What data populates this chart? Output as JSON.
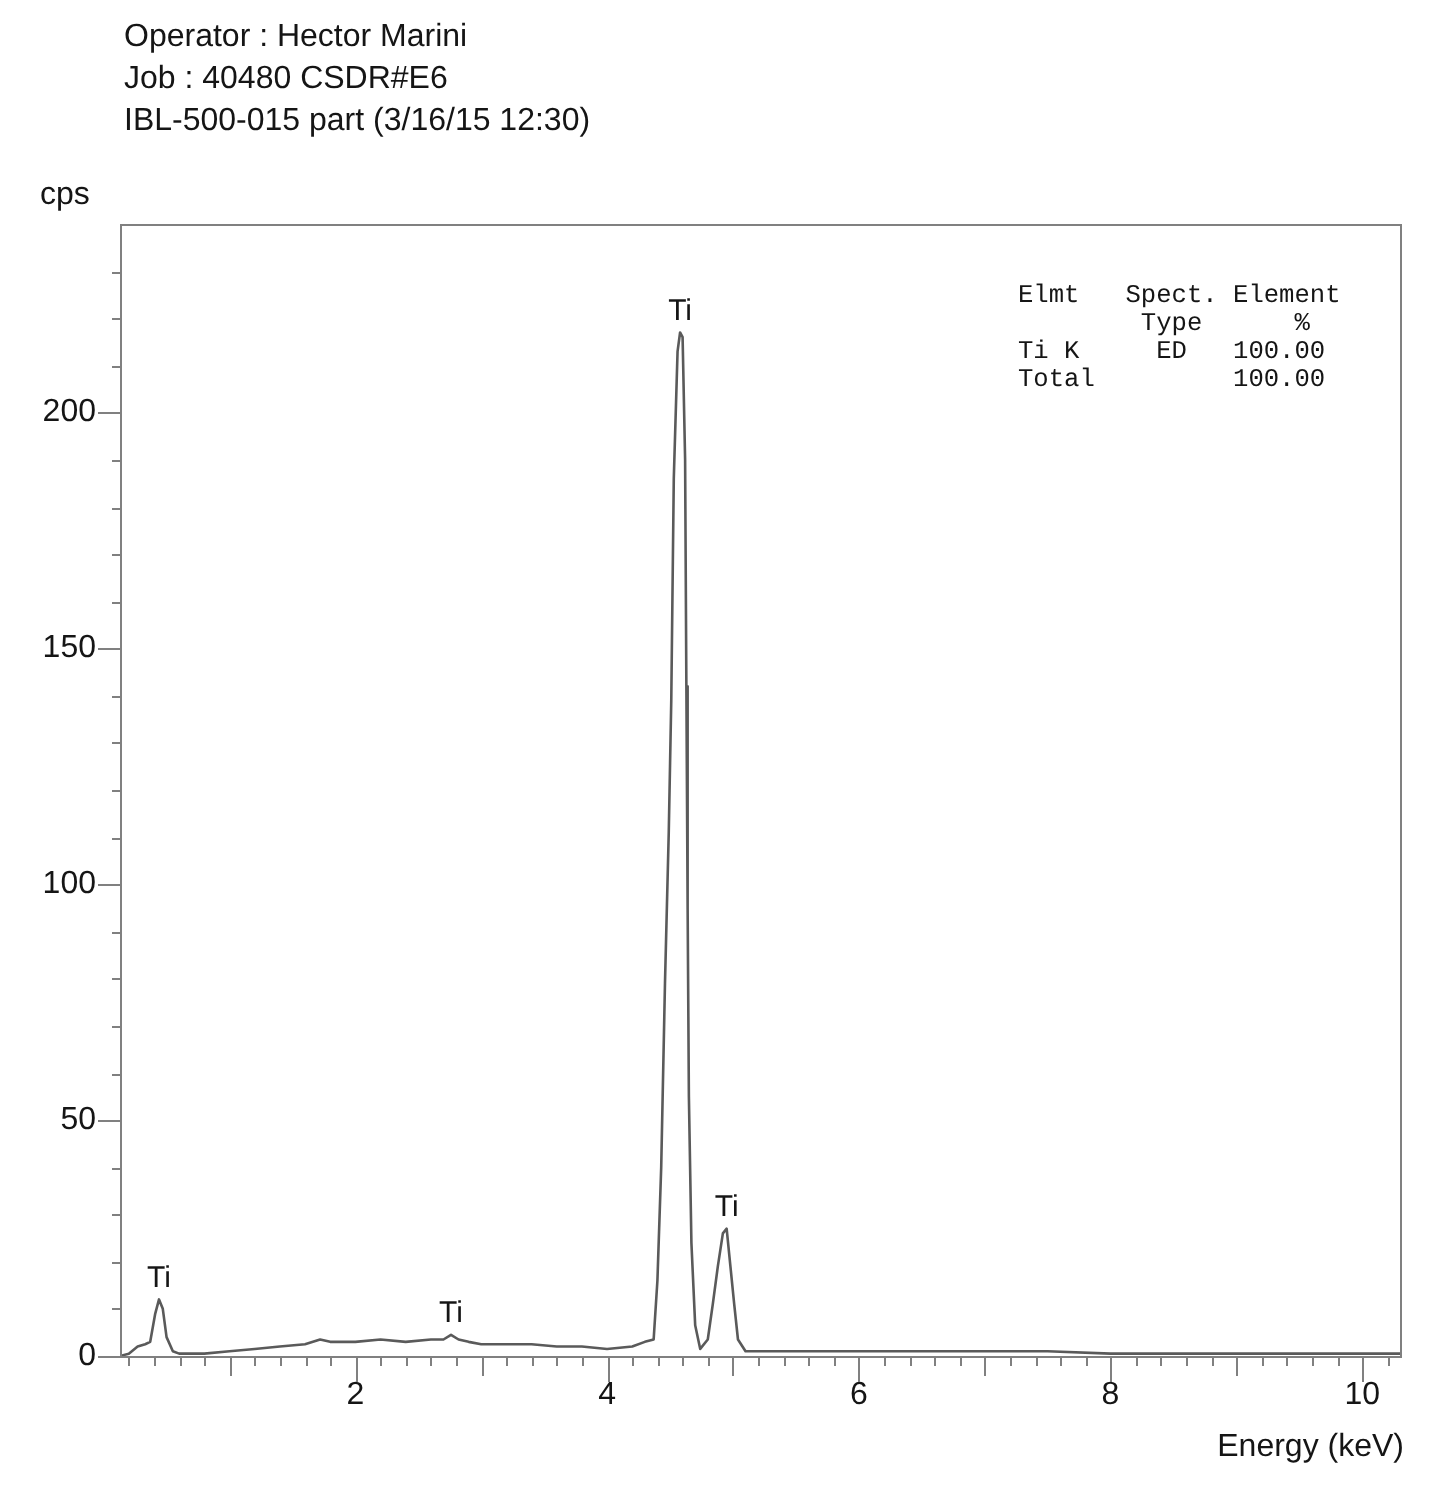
{
  "chart_data": {
    "type": "line",
    "title": "Operator : Hector Marini\nJob : 40480 CSDR#E6\nIBL-500-015 part (3/16/15 12:30)",
    "xlabel": "Energy (keV)",
    "ylabel": "cps",
    "annotations": [
      {
        "text": "Ti",
        "x": 0.44,
        "y": 12
      },
      {
        "text": "Ti",
        "x": 2.76,
        "y": 4.5
      },
      {
        "text": "Ti",
        "x": 4.58,
        "y": 217
      },
      {
        "text": "Ti",
        "x": 4.95,
        "y": 27
      },
      "Elmt   Spect. Element",
      "        Type      %",
      "Ti K     ED   100.00",
      "Total         100.00"
    ],
    "x": [
      0.13,
      0.2,
      0.27,
      0.33,
      0.37,
      0.41,
      0.44,
      0.47,
      0.5,
      0.55,
      0.6,
      0.8,
      1.0,
      1.2,
      1.4,
      1.6,
      1.72,
      1.8,
      2.0,
      2.2,
      2.4,
      2.6,
      2.7,
      2.76,
      2.82,
      2.9,
      3.0,
      3.2,
      3.4,
      3.6,
      3.8,
      4.0,
      4.2,
      4.3,
      4.37,
      4.4,
      4.43,
      4.46,
      4.49,
      4.51,
      4.53,
      4.56,
      4.58,
      4.6,
      4.62,
      4.63,
      4.64,
      4.65,
      4.67,
      4.7,
      4.74,
      4.8,
      4.84,
      4.88,
      4.92,
      4.95,
      4.98,
      5.01,
      5.04,
      5.1,
      5.3,
      5.6,
      6.0,
      6.5,
      7.0,
      7.5,
      8.0,
      8.5,
      9.0,
      9.5,
      10.0,
      10.3
    ],
    "values": [
      0,
      0.5,
      2,
      2.5,
      3,
      9,
      12,
      10,
      4,
      1,
      0.5,
      0.5,
      1,
      1.5,
      2,
      2.5,
      3.5,
      3,
      3,
      3.5,
      3,
      3.5,
      3.5,
      4.5,
      3.5,
      3,
      2.5,
      2.5,
      2.5,
      2,
      2,
      1.5,
      2,
      3,
      3.5,
      16,
      40,
      79,
      111,
      139,
      186,
      213,
      217,
      216,
      190,
      142,
      95,
      55,
      24,
      6.5,
      1.5,
      3.5,
      11,
      19,
      26,
      27,
      19,
      11,
      3.5,
      1,
      1,
      1,
      1,
      1,
      1,
      1,
      0.5,
      0.5,
      0.5,
      0.5,
      0.5,
      0.5
    ],
    "color": "#5a5a5a",
    "xlim": [
      0.13,
      10.3
    ],
    "xticks": [
      {
        "value": 0.2,
        "label": null
      },
      {
        "value": 0.4,
        "label": null
      },
      {
        "value": 0.6,
        "label": null
      },
      {
        "value": 0.8,
        "label": null
      },
      {
        "value": 1,
        "label": null
      },
      {
        "value": 1.2,
        "label": null
      },
      {
        "value": 1.4,
        "label": null
      },
      {
        "value": 1.6,
        "label": null
      },
      {
        "value": 1.8,
        "label": null
      },
      2,
      {
        "value": 2.2,
        "label": null
      },
      {
        "value": 2.4,
        "label": null
      },
      {
        "value": 2.6,
        "label": null
      },
      {
        "value": 2.8,
        "label": null
      },
      {
        "value": 3,
        "label": null
      },
      {
        "value": 3.2,
        "label": null
      },
      {
        "value": 3.4,
        "label": null
      },
      {
        "value": 3.6,
        "label": null
      },
      {
        "value": 3.8,
        "label": null
      },
      4,
      {
        "value": 4.2,
        "label": null
      },
      {
        "value": 4.4,
        "label": null
      },
      {
        "value": 4.6,
        "label": null
      },
      {
        "value": 4.8,
        "label": null
      },
      {
        "value": 5,
        "label": null
      },
      {
        "value": 5.2,
        "label": null
      },
      {
        "value": 5.4,
        "label": null
      },
      {
        "value": 5.6,
        "label": null
      },
      {
        "value": 5.8,
        "label": null
      },
      6,
      {
        "value": 6.2,
        "label": null
      },
      {
        "value": 6.4,
        "label": null
      },
      {
        "value": 6.6,
        "label": null
      },
      {
        "value": 6.8,
        "label": null
      },
      {
        "value": 7,
        "label": null
      },
      {
        "value": 7.2,
        "label": null
      },
      {
        "value": 7.4,
        "label": null
      },
      {
        "value": 7.6,
        "label": null
      },
      {
        "value": 7.8,
        "label": null
      },
      8,
      {
        "value": 8.2,
        "label": null
      },
      {
        "value": 8.4,
        "label": null
      },
      {
        "value": 8.6,
        "label": null
      },
      {
        "value": 8.8,
        "label": null
      },
      {
        "value": 9,
        "label": null
      },
      {
        "value": 9.2,
        "label": null
      },
      {
        "value": 9.4,
        "label": null
      },
      {
        "value": 9.6,
        "label": null
      },
      {
        "value": 9.8,
        "label": null
      },
      10,
      {
        "value": 10.2,
        "label": null
      }
    ],
    "ylim": [
      0,
      240
    ],
    "yticks": [
      0,
      {
        "value": 10,
        "label": null
      },
      {
        "value": 20,
        "label": null
      },
      {
        "value": 30,
        "label": null
      },
      {
        "value": 40,
        "label": null
      },
      50,
      {
        "value": 60,
        "label": null
      },
      {
        "value": 70,
        "label": null
      },
      {
        "value": 80,
        "label": null
      },
      {
        "value": 90,
        "label": null
      },
      100,
      {
        "value": 110,
        "label": null
      },
      {
        "value": 120,
        "label": null
      },
      {
        "value": 130,
        "label": null
      },
      {
        "value": 140,
        "label": null
      },
      150,
      {
        "value": 160,
        "label": null
      },
      {
        "value": 170,
        "label": null
      },
      {
        "value": 180,
        "label": null
      },
      {
        "value": 190,
        "label": null
      },
      200,
      {
        "value": 210,
        "label": null
      },
      {
        "value": 220,
        "label": null
      },
      {
        "value": 230,
        "label": null
      }
    ],
    "grid": false,
    "legend": false,
    "marker": "none"
  }
}
